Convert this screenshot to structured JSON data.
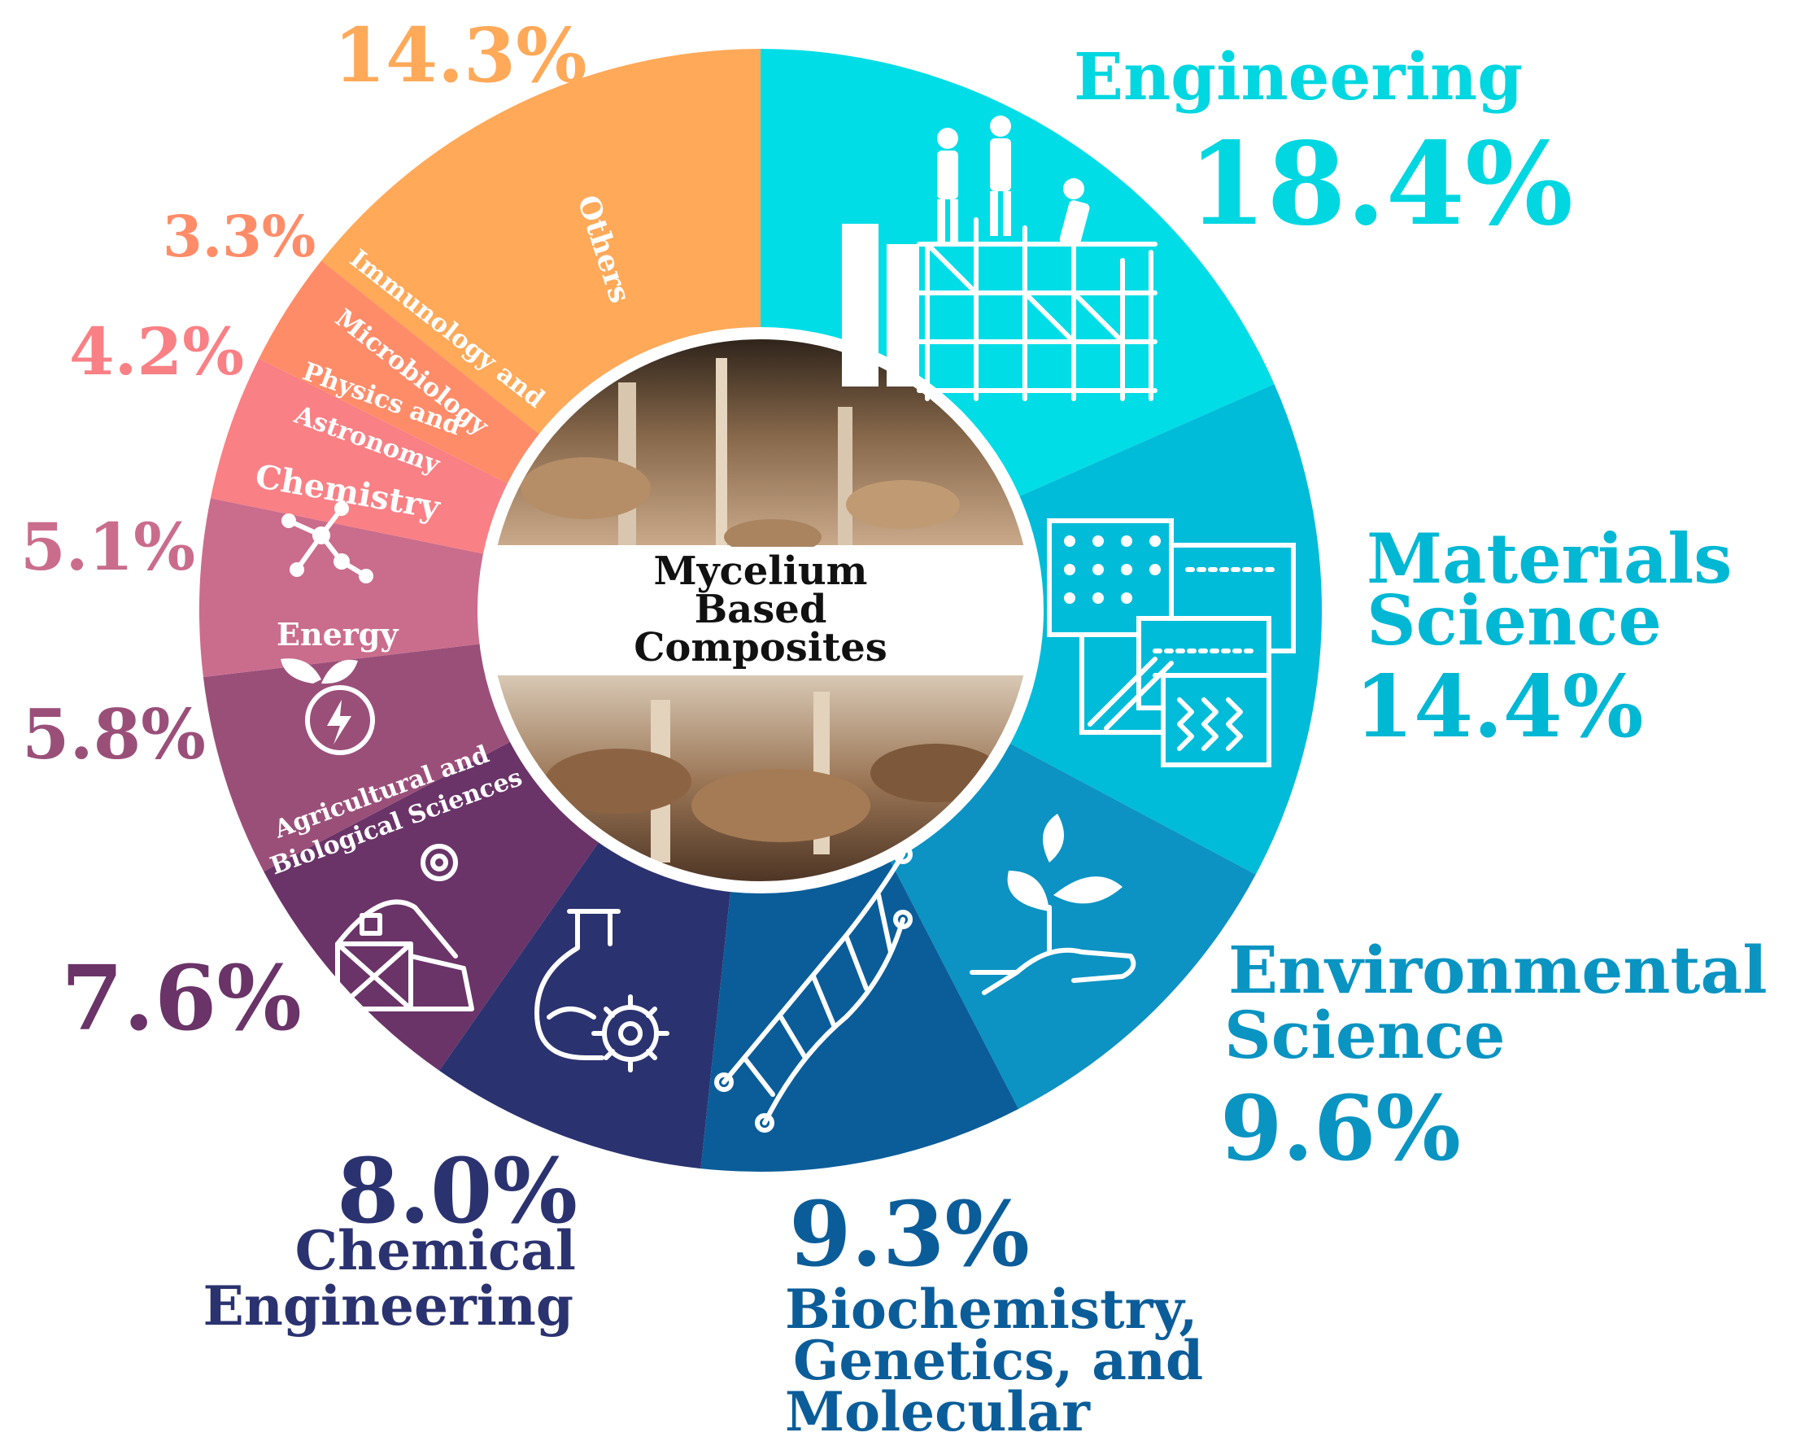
{
  "chart_data": {
    "type": "pie",
    "variant": "donut",
    "center_label": [
      "Mycelium",
      "Based",
      "Composites"
    ],
    "slices": [
      {
        "name": "Engineering",
        "value": 18.4,
        "label": "18.4%",
        "color": "#00DDE6",
        "icon": "construction-workers-icon"
      },
      {
        "name": "Materials Science",
        "value": 14.4,
        "label": "14.4%",
        "color": "#00BCD9",
        "icon": "material-textures-icon"
      },
      {
        "name": "Environmental Science",
        "value": 9.6,
        "label": "9.6%",
        "color": "#0C93C3",
        "icon": "plant-in-hand-icon"
      },
      {
        "name": "Biochemistry, Genetics, and Molecular",
        "value": 9.3,
        "label": "9.3%",
        "color": "#0B5D99",
        "icon": "dna-icon"
      },
      {
        "name": "Chemical Engineering",
        "value": 8.0,
        "label": "8.0%",
        "color": "#2B3270",
        "icon": "flask-gear-icon"
      },
      {
        "name": "Agricultural and Biological Sciences",
        "value": 7.6,
        "label": "7.6%",
        "color": "#6A3468",
        "icon": "barn-icon"
      },
      {
        "name": "Energy",
        "value": 5.8,
        "label": "5.8%",
        "color": "#9A4F79",
        "icon": "leaf-bolt-icon"
      },
      {
        "name": "Chemistry",
        "value": 5.1,
        "label": "5.1%",
        "color": "#CA6D8C",
        "icon": "molecule-icon"
      },
      {
        "name": "Physics and Astronomy",
        "value": 4.2,
        "label": "4.2%",
        "color": "#F98085",
        "icon": ""
      },
      {
        "name": "Immunology and Microbiology",
        "value": 3.3,
        "label": "3.3%",
        "color": "#FF8C69",
        "icon": ""
      },
      {
        "name": "Others",
        "value": 14.3,
        "label": "14.3%",
        "color": "#FFA959",
        "icon": ""
      }
    ],
    "external_labels": {
      "engineering": {
        "name": "Engineering",
        "pct": "18.4%",
        "color": "#00D7E0"
      },
      "materials": {
        "name_lines": [
          "Materials",
          "Science"
        ],
        "pct": "14.4%",
        "color": "#00B8D4"
      },
      "environmental": {
        "name_lines": [
          "Environmental",
          "Science"
        ],
        "pct": "9.6%",
        "color": "#0A94C2"
      },
      "biochem": {
        "name_lines": [
          "Biochemistry,",
          "Genetics, and",
          "Molecular"
        ],
        "pct": "9.3%",
        "color": "#0B5D99"
      },
      "chemeng": {
        "name_lines": [
          "Chemical",
          "Engineering"
        ],
        "pct": "8.0%",
        "color": "#2B3270"
      },
      "agri": {
        "pct": "7.6%",
        "color": "#6A3468"
      },
      "energy": {
        "pct": "5.8%",
        "color": "#9A4F79"
      },
      "chemistry": {
        "pct": "5.1%",
        "color": "#CA6D8C"
      },
      "physics": {
        "pct": "4.2%",
        "color": "#F98085"
      },
      "immuno": {
        "pct": "3.3%",
        "color": "#FF8C69"
      },
      "others": {
        "pct": "14.3%",
        "color": "#FFA959"
      }
    },
    "internal_labels": {
      "others": "Others",
      "immuno": [
        "Immunology and",
        "Microbiology"
      ],
      "physics": [
        "Physics and",
        "Astronomy"
      ],
      "chemistry": "Chemistry",
      "energy": "Energy",
      "agri": [
        "Agricultural and",
        "Biological Sciences"
      ]
    }
  }
}
